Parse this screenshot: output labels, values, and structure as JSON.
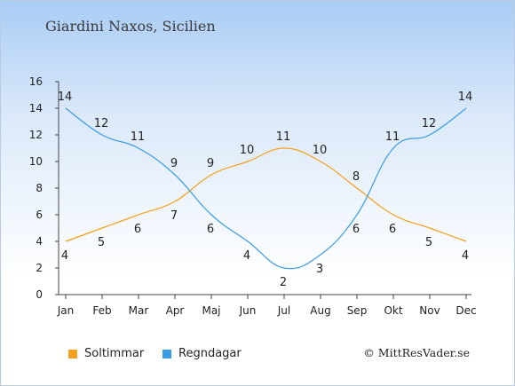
{
  "title": "Giardini Naxos, Sicilien",
  "credit": "© MittResVader.se",
  "chart_data": {
    "type": "line",
    "categories": [
      "Jan",
      "Feb",
      "Mar",
      "Apr",
      "Maj",
      "Jun",
      "Jul",
      "Aug",
      "Sep",
      "Okt",
      "Nov",
      "Dec"
    ],
    "ylim": [
      0,
      16
    ],
    "yticks": [
      0,
      2,
      4,
      6,
      8,
      10,
      12,
      14,
      16
    ],
    "grid": false,
    "legend_position": "bottom-left",
    "series": [
      {
        "name": "Soltimmar",
        "color": "#f5a01a",
        "values": [
          4,
          5,
          6,
          7,
          9,
          10,
          11,
          10,
          8,
          6,
          5,
          4
        ]
      },
      {
        "name": "Regndagar",
        "color": "#3a9be6",
        "values": [
          14,
          12,
          11,
          9,
          6,
          4,
          2,
          3,
          6,
          11,
          12,
          14
        ]
      }
    ]
  }
}
